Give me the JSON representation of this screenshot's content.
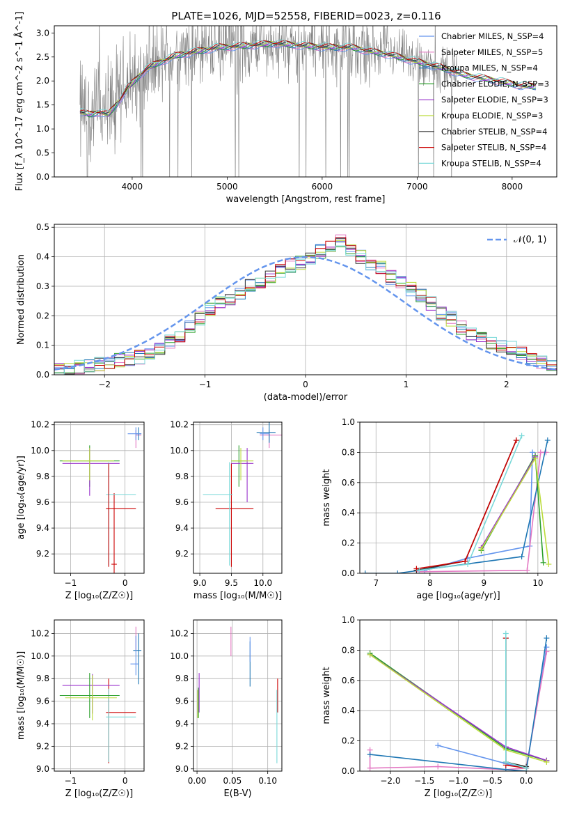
{
  "figure": {
    "title": "PLATE=1026, MJD=52558, FIBERID=0023, z=0.116"
  },
  "series_colors": [
    "#6495ed",
    "#e377c2",
    "#1f77b4",
    "#2ca02c",
    "#9932cc",
    "#bcdc3c",
    "#333333",
    "#cc0000",
    "#7ad9d9"
  ],
  "chart_data": [
    {
      "id": "spectrum",
      "type": "line",
      "title": "PLATE=1026, MJD=52558, FIBERID=0023, z=0.116",
      "xlabel": "wavelength [Angstrom, rest frame]",
      "ylabel": "Flux [f_λ 10^-17 erg cm^-2 s^-1 Å^-1]",
      "xlim": [
        3180,
        8470
      ],
      "ylim": [
        0,
        3.15
      ],
      "xticks": [
        4000,
        5000,
        6000,
        7000,
        8000
      ],
      "yticks": [
        0.0,
        0.5,
        1.0,
        1.5,
        2.0,
        2.5,
        3.0
      ],
      "grid": false,
      "legend_position": "top-right",
      "data_color": "#808080",
      "continuum": {
        "x": [
          3450,
          3550,
          3650,
          3750,
          3850,
          3950,
          4050,
          4150,
          4300,
          4500,
          4700,
          4900,
          5100,
          5300,
          5500,
          5700,
          5900,
          6100,
          6300,
          6500,
          6700,
          6900,
          7100,
          7300,
          7500,
          7700,
          7900,
          8100,
          8250
        ],
        "y": [
          1.35,
          1.3,
          1.35,
          1.3,
          1.55,
          1.85,
          2.05,
          2.25,
          2.4,
          2.55,
          2.62,
          2.7,
          2.72,
          2.75,
          2.78,
          2.75,
          2.72,
          2.7,
          2.7,
          2.62,
          2.55,
          2.45,
          2.35,
          2.25,
          2.12,
          2.05,
          1.98,
          1.9,
          1.88
        ]
      },
      "legend": [
        "Chabrier MILES, N_SSP=4",
        "Salpeter MILES, N_SSP=5",
        "Kroupa MILES, N_SSP=4",
        "Chabrier ELODIE, N_SSP=3",
        "Salpeter ELODIE, N_SSP=3",
        "Kroupa ELODIE, N_SSP=3",
        "Chabrier STELIB, N_SSP=4",
        "Salpeter STELIB, N_SSP=4",
        "Kroupa STELIB, N_SSP=4"
      ]
    },
    {
      "id": "residuals",
      "type": "histogram",
      "xlabel": "(data-model)/error",
      "ylabel": "Normed distribution",
      "xlim": [
        -2.5,
        2.5
      ],
      "ylim": [
        0,
        0.51
      ],
      "xticks": [
        -2,
        -1,
        0,
        1,
        2
      ],
      "yticks": [
        0.0,
        0.1,
        0.2,
        0.3,
        0.4,
        0.5
      ],
      "grid": true,
      "legend_position": "top-right",
      "legend": [
        "𝒩(0, 1)"
      ],
      "bin_width": 0.1,
      "bin_start": -2.5,
      "heights": [
        0.015,
        0.02,
        0.025,
        0.03,
        0.035,
        0.04,
        0.05,
        0.055,
        0.06,
        0.07,
        0.09,
        0.11,
        0.13,
        0.16,
        0.19,
        0.22,
        0.24,
        0.26,
        0.28,
        0.3,
        0.31,
        0.33,
        0.35,
        0.37,
        0.38,
        0.4,
        0.42,
        0.44,
        0.45,
        0.42,
        0.4,
        0.38,
        0.36,
        0.33,
        0.31,
        0.29,
        0.27,
        0.24,
        0.21,
        0.19,
        0.16,
        0.14,
        0.12,
        0.11,
        0.1,
        0.09,
        0.07,
        0.05,
        0.04,
        0.03
      ]
    },
    {
      "id": "age-vs-Z",
      "type": "errorbar",
      "xlabel": "Z [log₁₀(Z/Z☉)]",
      "ylabel": "age  [log₁₀(age/yr)]",
      "xlim": [
        -1.3,
        0.35
      ],
      "ylim": [
        9.05,
        10.22
      ],
      "xticks": [
        -1,
        0
      ],
      "yticks": [
        9.2,
        9.4,
        9.6,
        9.8,
        10.0,
        10.2
      ],
      "grid": true,
      "points": [
        {
          "x": -0.2,
          "y": 9.12,
          "xerr": [
            0.05,
            0.05
          ],
          "yerr": [
            0.07,
            0.55
          ],
          "color": 7
        },
        {
          "x": 0.2,
          "y": 10.12,
          "xerr": [
            0.0,
            0.1
          ],
          "yerr": [
            0.1,
            0.04
          ],
          "color": 1
        },
        {
          "x": 0.25,
          "y": 10.13,
          "xerr": [
            0.05,
            0.05
          ],
          "yerr": [
            0.05,
            0.05
          ],
          "color": 2
        },
        {
          "x": -0.65,
          "y": 9.92,
          "xerr": [
            0.55,
            0.55
          ],
          "yerr": [
            0.2,
            0.12
          ],
          "color": 3
        },
        {
          "x": -0.65,
          "y": 9.9,
          "xerr": [
            0.5,
            0.55
          ],
          "yerr": [
            0.25,
            0.12
          ],
          "color": 4
        },
        {
          "x": -0.65,
          "y": 9.92,
          "xerr": [
            0.5,
            0.45
          ],
          "yerr": [
            0.15,
            0.1
          ],
          "color": 5
        },
        {
          "x": -0.3,
          "y": 9.66,
          "xerr": [
            0.05,
            0.5
          ],
          "yerr": [
            0.55,
            0.25
          ],
          "color": 8
        },
        {
          "x": -0.3,
          "y": 9.55,
          "xerr": [
            0.05,
            0.5
          ],
          "yerr": [
            0.45,
            0.35
          ],
          "color": 7
        },
        {
          "x": 0.2,
          "y": 10.13,
          "xerr": [
            0.15,
            0.1
          ],
          "yerr": [
            0.05,
            0.05
          ],
          "color": 0
        }
      ]
    },
    {
      "id": "age-vs-mass",
      "type": "errorbar",
      "xlabel": "mass [log₁₀(M/M☉)]",
      "ylabel": "",
      "xlim": [
        8.9,
        10.3
      ],
      "ylim": [
        9.05,
        10.22
      ],
      "xticks": [
        9.0,
        9.5,
        10.0
      ],
      "yticks": [
        9.2,
        9.4,
        9.6,
        9.8,
        10.0,
        10.2
      ],
      "grid": true,
      "points": [
        {
          "x": 9.5,
          "y": 9.55,
          "xerr": [
            0.25,
            0.35
          ],
          "yerr": [
            0.45,
            0.35
          ],
          "color": 7
        },
        {
          "x": 9.47,
          "y": 9.66,
          "xerr": [
            0.42,
            0.05
          ],
          "yerr": [
            0.55,
            0.25
          ],
          "color": 8
        },
        {
          "x": 9.62,
          "y": 9.92,
          "xerr": [
            0.12,
            0.12
          ],
          "yerr": [
            0.2,
            0.12
          ],
          "color": 3
        },
        {
          "x": 9.75,
          "y": 9.9,
          "xerr": [
            0.25,
            0.1
          ],
          "yerr": [
            0.3,
            0.12
          ],
          "color": 4
        },
        {
          "x": 9.65,
          "y": 9.92,
          "xerr": [
            0.15,
            0.2
          ],
          "yerr": [
            0.15,
            0.1
          ],
          "color": 5
        },
        {
          "x": 10.1,
          "y": 10.12,
          "xerr": [
            0.15,
            0.25
          ],
          "yerr": [
            0.1,
            0.04
          ],
          "color": 1
        },
        {
          "x": 10.1,
          "y": 10.14,
          "xerr": [
            0.2,
            0.1
          ],
          "yerr": [
            0.08,
            0.08
          ],
          "color": 2
        },
        {
          "x": 10.0,
          "y": 10.13,
          "xerr": [
            0.05,
            0.1
          ],
          "yerr": [
            0.05,
            0.05
          ],
          "color": 0
        }
      ]
    },
    {
      "id": "mass-weight-vs-age",
      "type": "line",
      "xlabel": "age  [log₁₀(age/yr)]",
      "ylabel": "mass weight",
      "xlim": [
        6.7,
        10.35
      ],
      "ylim": [
        0.0,
        1.0
      ],
      "xticks": [
        7,
        8,
        9,
        10
      ],
      "yticks": [
        0.0,
        0.2,
        0.4,
        0.6,
        0.8,
        1.0
      ],
      "grid": true,
      "series": [
        {
          "color": 0,
          "x": [
            7.9,
            8.7,
            9.85,
            9.9
          ],
          "y": [
            0.02,
            0.1,
            0.18,
            0.8
          ]
        },
        {
          "color": 1,
          "x": [
            7.8,
            9.8,
            10.05,
            10.15
          ],
          "y": [
            0.01,
            0.02,
            0.8,
            0.8
          ]
        },
        {
          "color": 2,
          "x": [
            6.8,
            7.4,
            9.7,
            10.18
          ],
          "y": [
            0.0,
            0.0,
            0.11,
            0.88
          ]
        },
        {
          "color": 3,
          "x": [
            8.95,
            9.95,
            10.1
          ],
          "y": [
            0.15,
            0.78,
            0.07
          ]
        },
        {
          "color": 4,
          "x": [
            8.95,
            9.95
          ],
          "y": [
            0.17,
            0.77
          ]
        },
        {
          "color": 5,
          "x": [
            8.95,
            9.95,
            10.2
          ],
          "y": [
            0.16,
            0.76,
            0.06
          ]
        },
        {
          "color": 6,
          "x": [
            7.75,
            8.65,
            9.6
          ],
          "y": [
            0.02,
            0.08,
            0.88
          ]
        },
        {
          "color": 7,
          "x": [
            7.75,
            8.65,
            9.6
          ],
          "y": [
            0.03,
            0.08,
            0.88
          ]
        },
        {
          "color": 8,
          "x": [
            7.8,
            8.7,
            9.7
          ],
          "y": [
            0.02,
            0.06,
            0.91
          ]
        }
      ]
    },
    {
      "id": "mass-vs-Z",
      "type": "errorbar",
      "xlabel": "Z [log₁₀(Z/Z☉)]",
      "ylabel": "mass [log₁₀(M/M☉)]",
      "xlim": [
        -1.3,
        0.35
      ],
      "ylim": [
        8.98,
        10.32
      ],
      "xticks": [
        -1,
        0
      ],
      "yticks": [
        9.0,
        9.2,
        9.4,
        9.6,
        9.8,
        10.0,
        10.2
      ],
      "grid": true,
      "points": [
        {
          "x": -0.3,
          "y": 9.5,
          "xerr": [
            0.05,
            0.5
          ],
          "yerr": [
            0.45,
            0.3
          ],
          "color": 7
        },
        {
          "x": -0.3,
          "y": 9.46,
          "xerr": [
            0.05,
            0.5
          ],
          "yerr": [
            0.4,
            0.25
          ],
          "color": 8
        },
        {
          "x": -0.6,
          "y": 9.74,
          "xerr": [
            0.55,
            0.5
          ],
          "yerr": [
            0.25,
            0.1
          ],
          "color": 4
        },
        {
          "x": -0.65,
          "y": 9.65,
          "xerr": [
            0.55,
            0.55
          ],
          "yerr": [
            0.2,
            0.2
          ],
          "color": 3
        },
        {
          "x": -0.6,
          "y": 9.63,
          "xerr": [
            0.5,
            0.45
          ],
          "yerr": [
            0.2,
            0.2
          ],
          "color": 5
        },
        {
          "x": 0.2,
          "y": 10.14,
          "xerr": [
            0.0,
            0.0
          ],
          "yerr": [
            0.1,
            0.12
          ],
          "color": 1
        },
        {
          "x": 0.25,
          "y": 10.05,
          "xerr": [
            0.1,
            0.05
          ],
          "yerr": [
            0.3,
            0.15
          ],
          "color": 2
        },
        {
          "x": 0.2,
          "y": 9.93,
          "xerr": [
            0.1,
            0.05
          ],
          "yerr": [
            0.1,
            0.25
          ],
          "color": 0
        }
      ]
    },
    {
      "id": "mass-vs-ebv",
      "type": "errorbar",
      "xlabel": "E(B-V)",
      "ylabel": "",
      "xlim": [
        -0.005,
        0.12
      ],
      "ylim": [
        8.98,
        10.32
      ],
      "xticks": [
        0.0,
        0.05,
        0.1
      ],
      "xticklabels": [
        "0.00",
        "0.05",
        "0.10"
      ],
      "yticks": [
        9.0,
        9.2,
        9.4,
        9.6,
        9.8,
        10.0,
        10.2
      ],
      "grid": true,
      "points": [
        {
          "x": 0.002,
          "y": 9.6,
          "xerr": [
            0,
            0
          ],
          "yerr": [
            0.15,
            0.12
          ],
          "color": 3
        },
        {
          "x": 0.003,
          "y": 9.7,
          "xerr": [
            0,
            0
          ],
          "yerr": [
            0.2,
            0.15
          ],
          "color": 4
        },
        {
          "x": 0.001,
          "y": 9.6,
          "xerr": [
            0,
            0
          ],
          "yerr": [
            0.15,
            0.1
          ],
          "color": 5
        },
        {
          "x": 0.048,
          "y": 10.14,
          "xerr": [
            0,
            0
          ],
          "yerr": [
            0.14,
            0.12
          ],
          "color": 1
        },
        {
          "x": 0.075,
          "y": 9.95,
          "xerr": [
            0,
            0
          ],
          "yerr": [
            0.22,
            0.18
          ],
          "color": 2
        },
        {
          "x": 0.075,
          "y": 10.05,
          "xerr": [
            0,
            0
          ],
          "yerr": [
            0.1,
            0.12
          ],
          "color": 0
        },
        {
          "x": 0.114,
          "y": 9.6,
          "xerr": [
            0,
            0
          ],
          "yerr": [
            0.1,
            0.2
          ],
          "color": 7
        },
        {
          "x": 0.113,
          "y": 9.4,
          "xerr": [
            0,
            0
          ],
          "yerr": [
            0.35,
            0.3
          ],
          "color": 8
        }
      ]
    },
    {
      "id": "mass-weight-vs-Z",
      "type": "line",
      "xlabel": "Z [log₁₀(Z/Z☉)]",
      "ylabel": "mass weight",
      "xlim": [
        -2.45,
        0.45
      ],
      "ylim": [
        0.0,
        1.0
      ],
      "xticks": [
        -2.0,
        -1.5,
        -1.0,
        -0.5,
        0.0
      ],
      "yticks": [
        0.0,
        0.2,
        0.4,
        0.6,
        0.8,
        1.0
      ],
      "grid": true,
      "series": [
        {
          "color": 0,
          "x": [
            -1.3,
            -0.3,
            0.0,
            0.3
          ],
          "y": [
            0.17,
            0.05,
            0.02,
            0.82
          ]
        },
        {
          "color": 1,
          "x": [
            -2.3,
            -2.3,
            -1.3,
            -0.3,
            0.0,
            0.3
          ],
          "y": [
            0.14,
            0.02,
            0.03,
            0.01,
            0.02,
            0.79
          ]
        },
        {
          "color": 2,
          "x": [
            -2.3,
            -0.3,
            0.0,
            0.3
          ],
          "y": [
            0.11,
            0.01,
            0.0,
            0.88
          ]
        },
        {
          "color": 3,
          "x": [
            -2.3,
            -0.3,
            0.3
          ],
          "y": [
            0.78,
            0.15,
            0.07
          ]
        },
        {
          "color": 4,
          "x": [
            -2.3,
            -0.3,
            0.3
          ],
          "y": [
            0.77,
            0.16,
            0.07
          ]
        },
        {
          "color": 5,
          "x": [
            -2.3,
            -0.3,
            0.3
          ],
          "y": [
            0.77,
            0.14,
            0.06
          ]
        },
        {
          "color": 6,
          "x": [
            -0.3,
            -0.3,
            0.0
          ],
          "y": [
            0.88,
            0.06,
            0.03
          ]
        },
        {
          "color": 7,
          "x": [
            -0.3,
            -0.3,
            0.0
          ],
          "y": [
            0.88,
            0.04,
            0.02
          ]
        },
        {
          "color": 8,
          "x": [
            -0.3,
            -0.3,
            0.0
          ],
          "y": [
            0.91,
            0.06,
            0.02
          ]
        }
      ]
    }
  ]
}
